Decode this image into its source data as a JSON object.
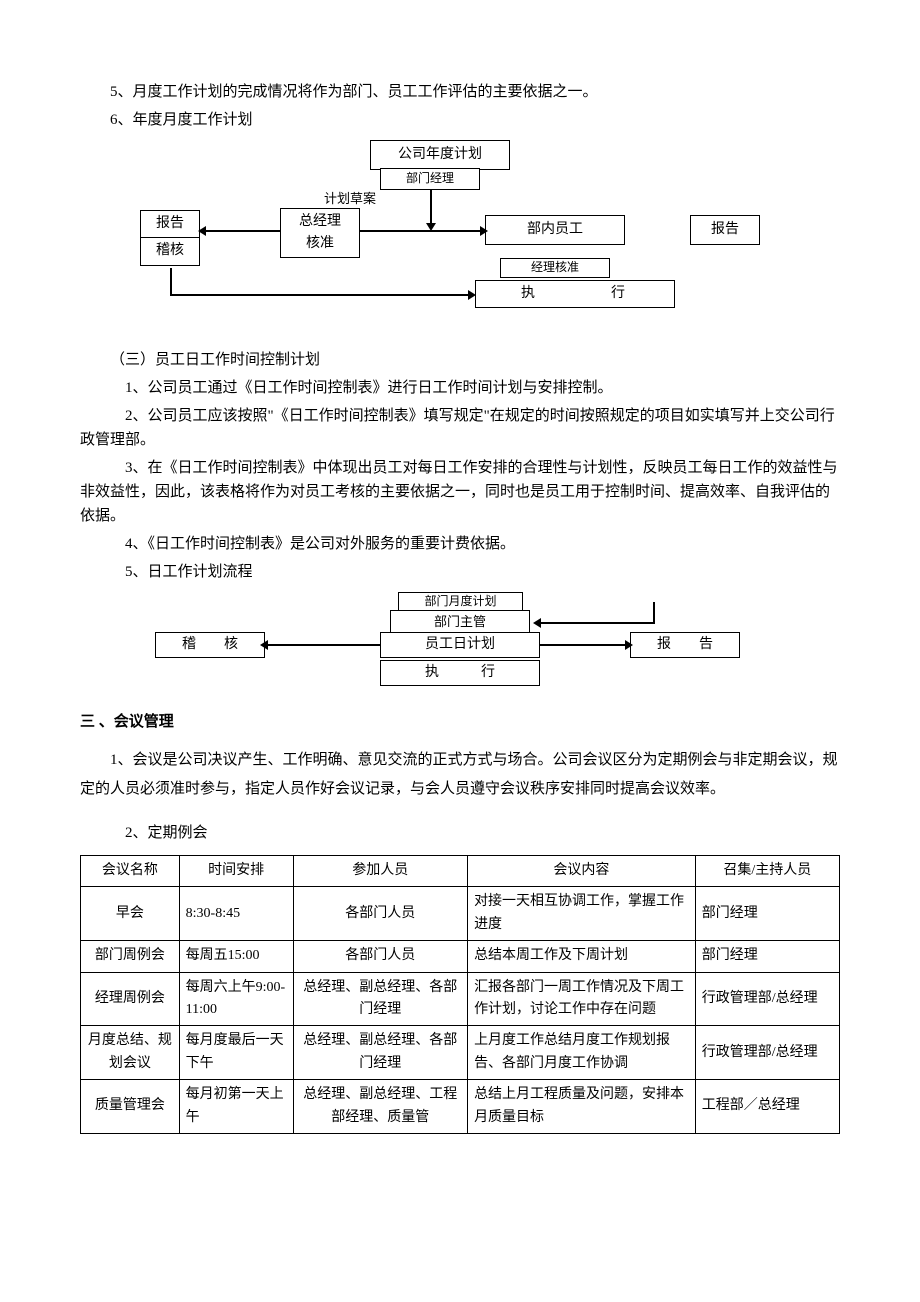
{
  "items": {
    "item5": "5、月度工作计划的完成情况将作为部门、员工工作评估的主要依据之一。",
    "item6": "6、年度月度工作计划"
  },
  "flowchart1": {
    "annual_plan": "公司年度计划",
    "dept_manager": "部门经理",
    "plan_draft": "计划草案",
    "gm_approve": "总经理\n核准",
    "dept_staff": "部内员工",
    "report1": "报告",
    "audit1": "稽核",
    "report2": "报告",
    "mgr_approve": "经理核准",
    "execute": "执　　　　行"
  },
  "section3": {
    "title": "（三）员工日工作时间控制计划",
    "p1": "1、公司员工通过《日工作时间控制表》进行日工作时间计划与安排控制。",
    "p2": "2、公司员工应该按照\"《日工作时间控制表》填写规定\"在规定的时间按照规定的项目如实填写并上交公司行政管理部。",
    "p3": "3、在《日工作时间控制表》中体现出员工对每日工作安排的合理性与计划性，反映员工每日工作的效益性与非效益性，因此，该表格将作为对员工考核的主要依据之一，同时也是员工用于控制时间、提高效率、自我评估的依据。",
    "p4": "4、《日工作时间控制表》是公司对外服务的重要计费依据。",
    "p5": "5、日工作计划流程"
  },
  "flowchart2": {
    "dept_monthly": "部门月度计划",
    "dept_head": "部门主管",
    "emp_daily": "员工日计划",
    "execute": "执　　　行",
    "audit": "稽　　核",
    "report": "报　　告"
  },
  "meeting_section": {
    "title": "三 、会议管理",
    "intro": "1、会议是公司决议产生、工作明确、意见交流的正式方式与场合。公司会议区分为定期例会与非定期会议，规定的人员必须准时参与，指定人员作好会议记录，与会人员遵守会议秩序安排同时提高会议效率。",
    "sub2": "2、定期例会"
  },
  "table": {
    "headers": [
      "会议名称",
      "时间安排",
      "参加人员",
      "会议内容",
      "召集/主持人员"
    ],
    "rows": [
      [
        "早会",
        "8:30-8:45",
        "各部门人员",
        "对接一天相互协调工作，掌握工作进度",
        "部门经理"
      ],
      [
        "部门周例会",
        "每周五15:00",
        "各部门人员",
        "总结本周工作及下周计划",
        "部门经理"
      ],
      [
        "经理周例会",
        "每周六上午9:00-11:00",
        "总经理、副总经理、各部门经理",
        "汇报各部门一周工作情况及下周工作计划，讨论工作中存在问题",
        "行政管理部/总经理"
      ],
      [
        "月度总结、规划会议",
        "每月度最后一天下午",
        "总经理、副总经理、各部门经理",
        "上月度工作总结月度工作规划报告、各部门月度工作协调",
        "行政管理部/总经理"
      ],
      [
        "质量管理会",
        "每月初第一天上午",
        "总经理、副总经理、工程部经理、质量管",
        "总结上月工程质量及问题，安排本月质量目标",
        "工程部／总经理"
      ]
    ]
  }
}
